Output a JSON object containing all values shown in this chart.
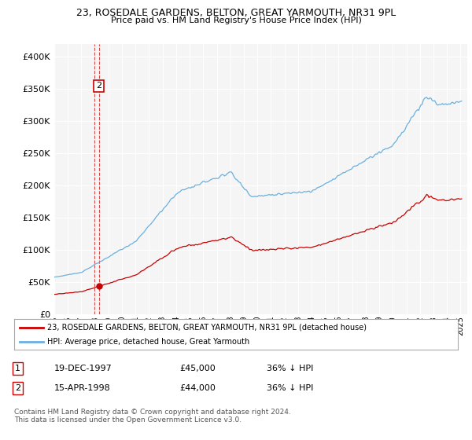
{
  "title": "23, ROSEDALE GARDENS, BELTON, GREAT YARMOUTH, NR31 9PL",
  "subtitle": "Price paid vs. HM Land Registry's House Price Index (HPI)",
  "legend_label_red": "23, ROSEDALE GARDENS, BELTON, GREAT YARMOUTH, NR31 9PL (detached house)",
  "legend_label_blue": "HPI: Average price, detached house, Great Yarmouth",
  "transactions": [
    {
      "date_num": 1997.97,
      "price": 45000,
      "label": "1"
    },
    {
      "date_num": 1998.29,
      "price": 44000,
      "label": "2"
    }
  ],
  "footer": "Contains HM Land Registry data © Crown copyright and database right 2024.\nThis data is licensed under the Open Government Licence v3.0.",
  "table_rows": [
    [
      "1",
      "19-DEC-1997",
      "£45,000",
      "36% ↓ HPI"
    ],
    [
      "2",
      "15-APR-1998",
      "£44,000",
      "36% ↓ HPI"
    ]
  ],
  "ylim": [
    0,
    420000
  ],
  "xlim_start": 1995.0,
  "xlim_end": 2025.5,
  "hpi_color": "#6ab0e0",
  "price_color": "#cc0000",
  "dashed_color": "#cc0000",
  "background_plot": "#f5f5f5",
  "background_fig": "#ffffff"
}
